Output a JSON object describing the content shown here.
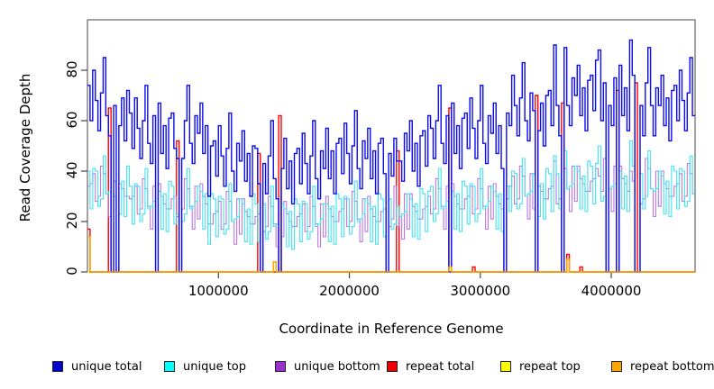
{
  "chart_data": {
    "type": "line",
    "line_style": "step",
    "title": "",
    "xlabel": "Coordinate in Reference Genome",
    "ylabel": "Read Coverage Depth",
    "xlim": [
      0,
      4640000
    ],
    "ylim": [
      0,
      100
    ],
    "x_start": 0,
    "x_step": 20000,
    "n_points": 232,
    "xticks": [
      1000000,
      2000000,
      3000000,
      4000000
    ],
    "xtick_labels": [
      "1000000",
      "2000000",
      "3000000",
      "4000000"
    ],
    "yticks": [
      0,
      20,
      40,
      60,
      80
    ],
    "ytick_labels": [
      "0",
      "20",
      "40",
      "60",
      "80"
    ],
    "legend_position": "bottom",
    "axis_color": "#666666",
    "series": [
      {
        "name": "unique total",
        "color": "#0b0bee",
        "legend_color": "#0000cd",
        "values": [
          74,
          60,
          80,
          68,
          56,
          71,
          85,
          62,
          54,
          0,
          66,
          0,
          58,
          69,
          52,
          72,
          63,
          49,
          69,
          57,
          45,
          60,
          74,
          51,
          43,
          62,
          0,
          67,
          47,
          58,
          41,
          61,
          63,
          49,
          45,
          0,
          45,
          60,
          74,
          51,
          43,
          62,
          55,
          67,
          47,
          58,
          30,
          50,
          52,
          38,
          58,
          46,
          34,
          49,
          63,
          40,
          32,
          51,
          44,
          56,
          36,
          47,
          30,
          50,
          49,
          35,
          0,
          43,
          31,
          46,
          60,
          37,
          29,
          0,
          41,
          53,
          33,
          44,
          27,
          47,
          49,
          35,
          55,
          43,
          31,
          46,
          60,
          37,
          29,
          48,
          41,
          57,
          37,
          48,
          31,
          51,
          53,
          39,
          59,
          47,
          35,
          50,
          64,
          41,
          33,
          52,
          45,
          57,
          37,
          48,
          31,
          51,
          53,
          39,
          0,
          47,
          38,
          53,
          44,
          44,
          36,
          55,
          48,
          60,
          40,
          51,
          34,
          54,
          56,
          42,
          62,
          57,
          45,
          60,
          74,
          51,
          43,
          62,
          0,
          67,
          47,
          58,
          41,
          61,
          63,
          49,
          69,
          57,
          45,
          60,
          74,
          51,
          43,
          62,
          55,
          67,
          47,
          58,
          41,
          0,
          63,
          58,
          78,
          66,
          54,
          69,
          83,
          60,
          52,
          71,
          64,
          0,
          56,
          67,
          50,
          70,
          72,
          58,
          90,
          66,
          54,
          0,
          89,
          66,
          58,
          77,
          70,
          82,
          62,
          73,
          56,
          76,
          78,
          64,
          84,
          88,
          60,
          75,
          0,
          66,
          58,
          77,
          0,
          82,
          62,
          73,
          56,
          92,
          78,
          0,
          0,
          66,
          54,
          75,
          89,
          66,
          54,
          73,
          66,
          78,
          58,
          69,
          52,
          72,
          74,
          60,
          80,
          68,
          56,
          71,
          85,
          62
        ]
      },
      {
        "name": "unique top",
        "color": "#45e2f0",
        "legend_color": "#00ffff",
        "values": [
          40,
          25,
          41,
          40,
          26,
          29,
          46,
          31,
          32,
          0,
          30,
          0,
          23,
          36,
          22,
          42,
          34,
          19,
          35,
          34,
          20,
          23,
          41,
          25,
          26,
          28,
          0,
          32,
          17,
          31,
          16,
          36,
          34,
          19,
          23,
          0,
          20,
          23,
          41,
          25,
          26,
          28,
          34,
          32,
          17,
          31,
          11,
          31,
          29,
          14,
          30,
          29,
          15,
          17,
          35,
          20,
          21,
          22,
          29,
          27,
          12,
          25,
          11,
          31,
          27,
          12,
          0,
          27,
          13,
          16,
          34,
          18,
          19,
          0,
          27,
          25,
          10,
          24,
          9,
          29,
          27,
          12,
          28,
          27,
          13,
          16,
          34,
          18,
          19,
          21,
          27,
          27,
          12,
          26,
          11,
          31,
          29,
          14,
          30,
          29,
          15,
          18,
          36,
          20,
          21,
          23,
          29,
          27,
          12,
          26,
          11,
          31,
          29,
          14,
          0,
          29,
          17,
          19,
          26,
          22,
          23,
          24,
          31,
          29,
          14,
          27,
          13,
          33,
          31,
          16,
          32,
          34,
          20,
          23,
          41,
          25,
          26,
          28,
          0,
          32,
          17,
          31,
          16,
          36,
          34,
          19,
          35,
          34,
          20,
          23,
          41,
          25,
          26,
          28,
          34,
          32,
          17,
          31,
          16,
          0,
          34,
          24,
          40,
          39,
          25,
          27,
          45,
          30,
          31,
          32,
          39,
          0,
          22,
          35,
          21,
          41,
          39,
          24,
          46,
          39,
          25,
          0,
          48,
          33,
          34,
          35,
          42,
          40,
          25,
          38,
          24,
          44,
          42,
          27,
          43,
          50,
          28,
          30,
          0,
          33,
          34,
          35,
          0,
          40,
          25,
          38,
          24,
          52,
          42,
          0,
          0,
          39,
          25,
          30,
          48,
          33,
          32,
          33,
          40,
          38,
          23,
          36,
          22,
          42,
          40,
          25,
          41,
          40,
          26,
          28,
          46,
          31
        ]
      },
      {
        "name": "unique bottom",
        "color": "#bb77e8",
        "legend_color": "#9932cc",
        "values": [
          34,
          35,
          39,
          28,
          30,
          42,
          39,
          31,
          22,
          0,
          36,
          0,
          35,
          33,
          30,
          30,
          29,
          30,
          34,
          23,
          25,
          37,
          33,
          26,
          17,
          34,
          0,
          35,
          30,
          27,
          25,
          25,
          29,
          30,
          22,
          0,
          25,
          37,
          33,
          26,
          17,
          34,
          21,
          35,
          30,
          27,
          19,
          19,
          23,
          24,
          28,
          17,
          19,
          32,
          28,
          20,
          11,
          29,
          15,
          29,
          24,
          22,
          19,
          19,
          22,
          23,
          0,
          16,
          18,
          30,
          26,
          19,
          10,
          0,
          14,
          28,
          23,
          20,
          18,
          18,
          22,
          23,
          27,
          16,
          18,
          30,
          26,
          19,
          10,
          27,
          14,
          30,
          25,
          22,
          20,
          20,
          24,
          25,
          29,
          18,
          20,
          32,
          28,
          21,
          12,
          29,
          16,
          30,
          25,
          22,
          20,
          20,
          24,
          25,
          0,
          18,
          21,
          34,
          18,
          22,
          13,
          31,
          17,
          31,
          26,
          24,
          21,
          21,
          25,
          26,
          30,
          23,
          25,
          37,
          33,
          26,
          17,
          34,
          0,
          35,
          30,
          27,
          25,
          25,
          29,
          30,
          34,
          23,
          25,
          37,
          33,
          26,
          17,
          34,
          21,
          35,
          30,
          27,
          25,
          0,
          29,
          34,
          38,
          27,
          29,
          42,
          38,
          30,
          21,
          39,
          25,
          0,
          34,
          32,
          29,
          29,
          33,
          34,
          44,
          27,
          29,
          0,
          41,
          33,
          24,
          42,
          28,
          42,
          37,
          35,
          32,
          32,
          36,
          37,
          41,
          38,
          32,
          45,
          0,
          33,
          24,
          42,
          0,
          42,
          37,
          35,
          32,
          40,
          36,
          0,
          0,
          27,
          29,
          45,
          41,
          33,
          22,
          40,
          26,
          40,
          35,
          33,
          30,
          30,
          34,
          35,
          39,
          28,
          30,
          43,
          39,
          31
        ]
      },
      {
        "name": "repeat total",
        "color": "#ff0000",
        "legend_color": "#ee0000",
        "baseline": 0,
        "spikes": {
          "0": 17,
          "8": 65,
          "34": 52,
          "65": 47,
          "73": 62,
          "118": 48,
          "138": 65,
          "147": 2,
          "171": 70,
          "181": 67,
          "183": 7,
          "188": 2,
          "202": 72,
          "209": 75
        }
      },
      {
        "name": "repeat top",
        "color": "#ffff00",
        "legend_color": "#ffff00",
        "baseline": 0,
        "spikes": {}
      },
      {
        "name": "repeat bottom",
        "color": "#ffa500",
        "legend_color": "#ffa500",
        "baseline": 0,
        "spikes": {
          "0": 14,
          "71": 4,
          "138": 2,
          "183": 5
        }
      }
    ]
  },
  "legend_x_positions": [
    58,
    182,
    305,
    429,
    555,
    678
  ]
}
